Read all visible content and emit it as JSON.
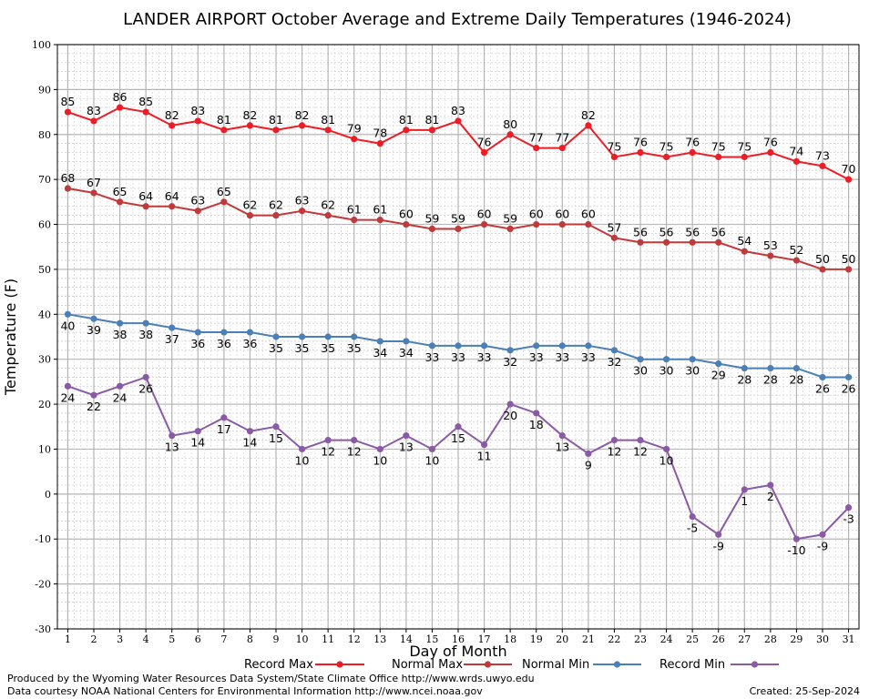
{
  "footer": {
    "credit_line1": "Produced by the Wyoming Water Resources Data System/State Climate Office http://www.wrds.uwyo.edu",
    "credit_line2": "Data courtesy NOAA National Centers for Environmental Information http://www.ncei.noaa.gov",
    "created": "Created:  25-Sep-2024"
  },
  "chart_data": {
    "type": "line",
    "title": "LANDER AIRPORT October Average and Extreme Daily Temperatures (1946-2024)",
    "xlabel": "Day of Month",
    "ylabel": "Temperature (F)",
    "xlim": [
      0.6,
      31.4
    ],
    "ylim": [
      -30,
      100
    ],
    "y_ticks": [
      -30,
      -20,
      -10,
      0,
      10,
      20,
      30,
      40,
      50,
      60,
      70,
      80,
      90,
      100
    ],
    "x": [
      1,
      2,
      3,
      4,
      5,
      6,
      7,
      8,
      9,
      10,
      11,
      12,
      13,
      14,
      15,
      16,
      17,
      18,
      19,
      20,
      21,
      22,
      23,
      24,
      25,
      26,
      27,
      28,
      29,
      30,
      31
    ],
    "grid": true,
    "legend_position": "bottom",
    "series": [
      {
        "name": "Record Max",
        "color": "#ee1c25",
        "label_position": "above",
        "values": [
          85,
          83,
          86,
          85,
          82,
          83,
          81,
          82,
          81,
          82,
          81,
          79,
          78,
          81,
          81,
          83,
          76,
          80,
          77,
          77,
          82,
          75,
          76,
          75,
          76,
          75,
          75,
          76,
          74,
          73,
          70
        ]
      },
      {
        "name": "Normal Max",
        "color": "#c0393b",
        "label_position": "above",
        "values": [
          68,
          67,
          65,
          64,
          64,
          63,
          65,
          62,
          62,
          63,
          62,
          61,
          61,
          60,
          59,
          59,
          60,
          59,
          60,
          60,
          60,
          57,
          56,
          56,
          56,
          56,
          54,
          53,
          52,
          50,
          50
        ]
      },
      {
        "name": "Normal Min",
        "color": "#4a7fb8",
        "label_position": "below",
        "values": [
          40,
          39,
          38,
          38,
          37,
          36,
          36,
          36,
          35,
          35,
          35,
          35,
          34,
          34,
          33,
          33,
          33,
          32,
          33,
          33,
          33,
          32,
          30,
          30,
          30,
          29,
          28,
          28,
          28,
          26,
          26
        ]
      },
      {
        "name": "Record Min",
        "color": "#8a5aa6",
        "label_position": "below",
        "values": [
          24,
          22,
          24,
          26,
          13,
          14,
          17,
          14,
          15,
          10,
          12,
          12,
          10,
          13,
          10,
          15,
          11,
          20,
          18,
          13,
          9,
          12,
          12,
          10,
          -5,
          -9,
          1,
          2,
          -10,
          -9,
          -3
        ]
      }
    ]
  }
}
